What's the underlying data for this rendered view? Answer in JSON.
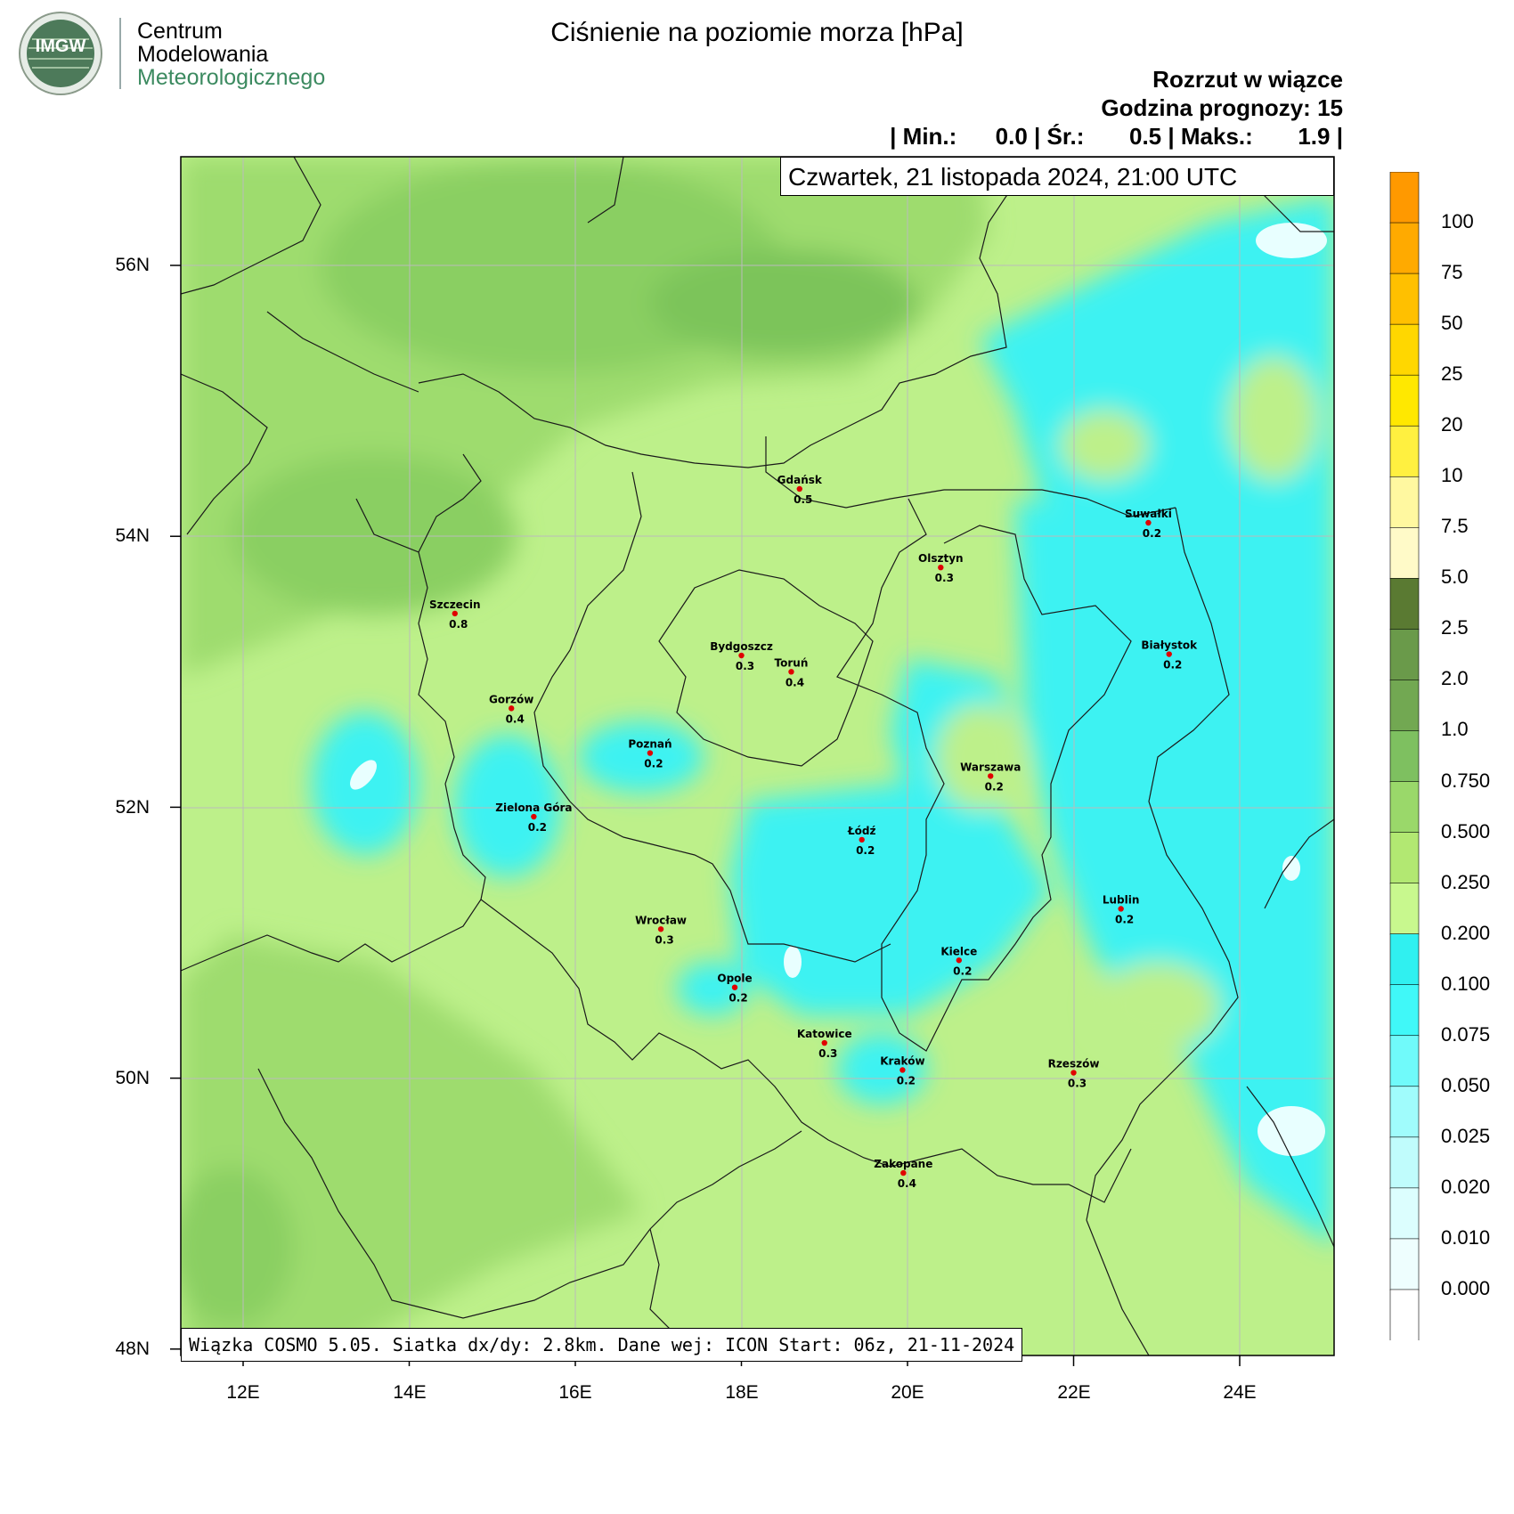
{
  "logo": {
    "badge": "IMGW",
    "line1": "Centrum",
    "line2": "Modelowania",
    "line3": "Meteorologicznego"
  },
  "title": "Ciśnienie na poziomie morza [hPa]",
  "info": {
    "line1": "Rozrzut w wiązce",
    "line2": "Godzina prognozy: 15",
    "line3": "| Min.:      0.0 | Śr.:       0.5 | Maks.:       1.9 |"
  },
  "date": "Czwartek, 21 listopada 2024, 21:00 UTC",
  "footer": "Wiązka COSMO 5.05. Siatka dx/dy: 2.8km. Dane wej: ICON Start: 06z, 21-11-2024",
  "axes": {
    "lat": [
      {
        "label": "56N",
        "value": 56
      },
      {
        "label": "54N",
        "value": 54
      },
      {
        "label": "52N",
        "value": 52
      },
      {
        "label": "50N",
        "value": 50
      },
      {
        "label": "48N",
        "value": 48
      }
    ],
    "lon": [
      {
        "label": "12E",
        "value": 12
      },
      {
        "label": "14E",
        "value": 14
      },
      {
        "label": "16E",
        "value": 16
      },
      {
        "label": "18E",
        "value": 18
      },
      {
        "label": "20E",
        "value": 20
      },
      {
        "label": "22E",
        "value": 22
      },
      {
        "label": "24E",
        "value": 24
      }
    ]
  },
  "legend": {
    "labels": [
      "100",
      "75",
      "50",
      "25",
      "20",
      "10",
      "7.5",
      "5.0",
      "2.5",
      "2.0",
      "1.0",
      "0.750",
      "0.500",
      "0.250",
      "0.200",
      "0.100",
      "0.075",
      "0.050",
      "0.025",
      "0.020",
      "0.010",
      "0.000"
    ],
    "colors": [
      "#ff9900",
      "#ffaa00",
      "#ffc000",
      "#ffd700",
      "#ffe800",
      "#fff040",
      "#fff8a0",
      "#fffac8",
      "#5a7a32",
      "#6a9a4a",
      "#72a852",
      "#7ec060",
      "#9ad86a",
      "#b2e872",
      "#c8f88e",
      "#30f0f0",
      "#40f8f8",
      "#70fafa",
      "#a0fcfc",
      "#c0fcfc",
      "#dcfefe",
      "#eefefe",
      "#ffffff"
    ]
  },
  "cities": [
    {
      "name": "Gdańsk",
      "value": "0.5",
      "lon": 18.7,
      "lat": 54.35
    },
    {
      "name": "Suwałki",
      "value": "0.2",
      "lon": 22.9,
      "lat": 54.1
    },
    {
      "name": "Olsztyn",
      "value": "0.3",
      "lon": 20.4,
      "lat": 53.77
    },
    {
      "name": "Szczecin",
      "value": "0.8",
      "lon": 14.55,
      "lat": 53.43
    },
    {
      "name": "Bydgoszcz",
      "value": "0.3",
      "lon": 18.0,
      "lat": 53.12
    },
    {
      "name": "Toruń",
      "value": "0.4",
      "lon": 18.6,
      "lat": 53.0
    },
    {
      "name": "Białystok",
      "value": "0.2",
      "lon": 23.15,
      "lat": 53.13
    },
    {
      "name": "Gorzów",
      "value": "0.4",
      "lon": 15.23,
      "lat": 52.73
    },
    {
      "name": "Poznań",
      "value": "0.2",
      "lon": 16.9,
      "lat": 52.4
    },
    {
      "name": "Warszawa",
      "value": "0.2",
      "lon": 21.0,
      "lat": 52.23
    },
    {
      "name": "Zielona Góra",
      "value": "0.2",
      "lon": 15.5,
      "lat": 51.93
    },
    {
      "name": "Łódź",
      "value": "0.2",
      "lon": 19.45,
      "lat": 51.76
    },
    {
      "name": "Lublin",
      "value": "0.2",
      "lon": 22.57,
      "lat": 51.25
    },
    {
      "name": "Wrocław",
      "value": "0.3",
      "lon": 17.03,
      "lat": 51.1
    },
    {
      "name": "Kielce",
      "value": "0.2",
      "lon": 20.62,
      "lat": 50.87
    },
    {
      "name": "Opole",
      "value": "0.2",
      "lon": 17.92,
      "lat": 50.67
    },
    {
      "name": "Katowice",
      "value": "0.3",
      "lon": 19.0,
      "lat": 50.26
    },
    {
      "name": "Kraków",
      "value": "0.2",
      "lon": 19.94,
      "lat": 50.06
    },
    {
      "name": "Rzeszów",
      "value": "0.3",
      "lon": 22.0,
      "lat": 50.04
    },
    {
      "name": "Zakopane",
      "value": "0.4",
      "lon": 19.95,
      "lat": 49.3
    }
  ]
}
